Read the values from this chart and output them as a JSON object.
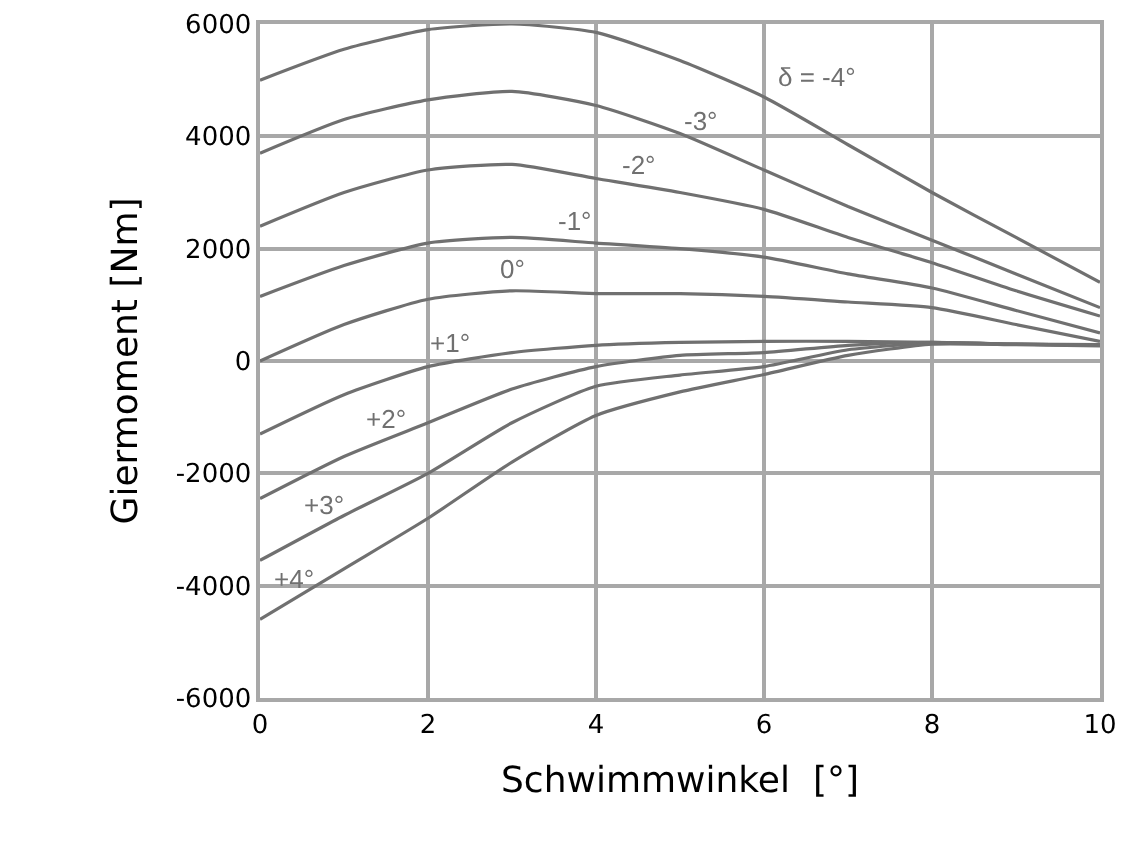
{
  "chart_data": {
    "type": "line",
    "xlabel": "Schwimmwinkel  [°]",
    "ylabel": "Giermoment [Nm]",
    "x": [
      0,
      1,
      2,
      3,
      4,
      5,
      6,
      7,
      8,
      9,
      10
    ],
    "series": [
      {
        "name": "δ = -4°",
        "color": "#707070",
        "values": [
          5000,
          5550,
          5900,
          6000,
          5850,
          5350,
          4700,
          3850,
          3000,
          2200,
          1400
        ]
      },
      {
        "name": "-3°",
        "color": "#707070",
        "values": [
          3700,
          4300,
          4650,
          4800,
          4550,
          4050,
          3400,
          2750,
          2150,
          1550,
          950
        ]
      },
      {
        "name": "-2°",
        "color": "#707070",
        "values": [
          2400,
          3000,
          3400,
          3500,
          3250,
          3000,
          2700,
          2200,
          1750,
          1250,
          800
        ]
      },
      {
        "name": "-1°",
        "color": "#707070",
        "values": [
          1150,
          1700,
          2100,
          2200,
          2100,
          2000,
          1850,
          1550,
          1300,
          900,
          500
        ]
      },
      {
        "name": "0°",
        "color": "#707070",
        "values": [
          0,
          650,
          1100,
          1250,
          1200,
          1200,
          1150,
          1050,
          950,
          650,
          350
        ]
      },
      {
        "name": "+1°",
        "color": "#707070",
        "values": [
          -1300,
          -600,
          -100,
          150,
          280,
          330,
          350,
          350,
          330,
          300,
          290
        ]
      },
      {
        "name": "+2°",
        "color": "#707070",
        "values": [
          -2450,
          -1700,
          -1100,
          -500,
          -100,
          100,
          150,
          280,
          330,
          300,
          280
        ]
      },
      {
        "name": "+3°",
        "color": "#707070",
        "values": [
          -3550,
          -2750,
          -2000,
          -1100,
          -450,
          -250,
          -100,
          200,
          320,
          300,
          280
        ]
      },
      {
        "name": "+4°",
        "color": "#707070",
        "values": [
          -4600,
          -3700,
          -2800,
          -1800,
          -970,
          -550,
          -240,
          100,
          300,
          290,
          270
        ]
      }
    ],
    "xlim": [
      0,
      10
    ],
    "xticks": [
      0,
      2,
      4,
      6,
      8,
      10
    ],
    "ylim": [
      -6000,
      6000
    ],
    "yticks": [
      -6000,
      -4000,
      -2000,
      0,
      2000,
      4000,
      6000
    ],
    "grid": true,
    "legend": false,
    "marker": "none",
    "line_style": "solid"
  }
}
